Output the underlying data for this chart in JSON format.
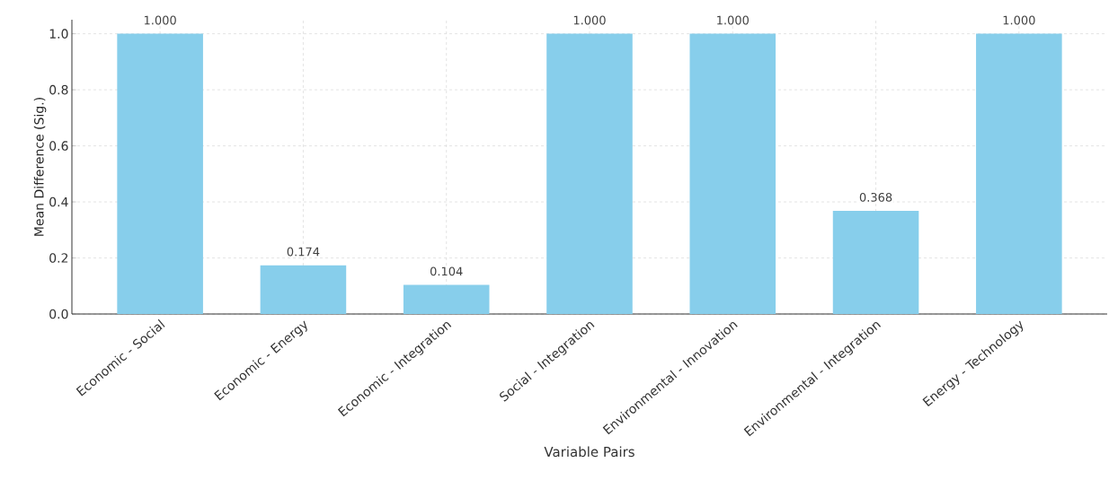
{
  "chart_data": {
    "type": "bar",
    "xlabel": "Variable Pairs",
    "ylabel": "Mean Difference (Sig.)",
    "categories": [
      "Economic - Social",
      "Economic - Energy",
      "Economic - Integration",
      "Social - Integration",
      "Environmental - Innovation",
      "Environmental - Integration",
      "Energy - Technology"
    ],
    "values": [
      1.0,
      0.174,
      0.104,
      1.0,
      1.0,
      0.368,
      1.0
    ],
    "value_labels": [
      "1.000",
      "0.174",
      "0.104",
      "1.000",
      "1.000",
      "0.368",
      "1.000"
    ],
    "color": "#87ceeb",
    "ylim": [
      0,
      1.05
    ],
    "yticks": [
      {
        "value": 0,
        "label": "0.0"
      },
      {
        "value": 0.2,
        "label": "0.2"
      },
      {
        "value": 0.4,
        "label": "0.4"
      },
      {
        "value": 0.6,
        "label": "0.6"
      },
      {
        "value": 0.8,
        "label": "0.8"
      },
      {
        "value": 1.0,
        "label": "1.0"
      }
    ],
    "grid": true
  }
}
